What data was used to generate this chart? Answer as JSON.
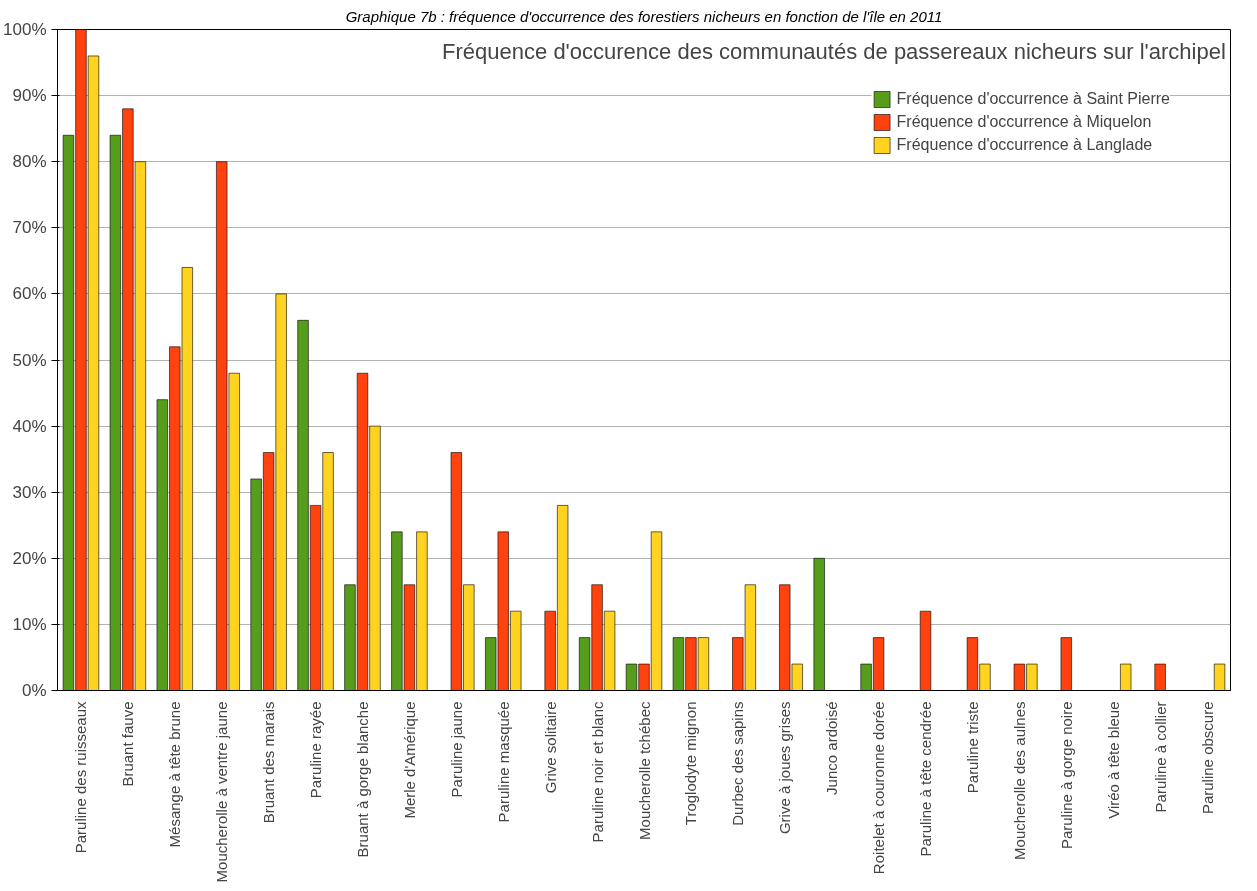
{
  "chart_data": {
    "type": "bar",
    "title": "Graphique 7b : fréquence d'occurrence des forestiers nicheurs en fonction de l'île en 2011",
    "subtitle": "Fréquence d'occurence des communautés de passereaux nicheurs sur l'archipel",
    "categories": [
      "Paruline des ruisseaux",
      "Bruant fauve",
      "Mésange à tête brune",
      "Moucherolle à ventre jaune",
      "Bruant des marais",
      "Paruline rayée",
      "Bruant à gorge blanche",
      "Merle d'Amérique",
      "Paruline jaune",
      "Paruline masquée",
      "Grive solitaire",
      "Paruline noir et blanc",
      "Moucherolle tchébec",
      "Troglodyte mignon",
      "Durbec des sapins",
      "Grive à joues grises",
      "Junco ardoisé",
      "Roitelet à couronne dorée",
      "Paruline à tête cendrée",
      "Paruline triste",
      "Moucherolle des aulnes",
      "Paruline à gorge noire",
      "Viréo à tête bleue",
      "Paruline à collier",
      "Paruline obscure"
    ],
    "series": [
      {
        "name": "Fréquence d'occurrence à Saint Pierre",
        "color": "#579d1c",
        "values": [
          84,
          84,
          44,
          0,
          32,
          56,
          16,
          24,
          0,
          8,
          0,
          8,
          4,
          8,
          0,
          0,
          20,
          4,
          0,
          0,
          0,
          0,
          0,
          0,
          0
        ]
      },
      {
        "name": "Fréquence d'occurrence à Miquelon",
        "color": "#ff420e",
        "values": [
          100,
          88,
          52,
          80,
          36,
          28,
          48,
          16,
          36,
          24,
          12,
          16,
          4,
          8,
          8,
          16,
          0,
          8,
          12,
          8,
          4,
          8,
          0,
          4,
          0
        ]
      },
      {
        "name": "Fréquence d'occurrence à Langlade",
        "color": "#ffd320",
        "values": [
          96,
          80,
          64,
          48,
          60,
          36,
          40,
          24,
          16,
          12,
          28,
          12,
          24,
          8,
          16,
          4,
          0,
          0,
          0,
          4,
          4,
          0,
          4,
          0,
          4
        ]
      }
    ],
    "ylim": [
      0,
      100
    ],
    "yticks": [
      {
        "value": 0,
        "label": "0%"
      },
      {
        "value": 10,
        "label": "10%"
      },
      {
        "value": 20,
        "label": "20%"
      },
      {
        "value": 30,
        "label": "30%"
      },
      {
        "value": 40,
        "label": "40%"
      },
      {
        "value": 50,
        "label": "50%"
      },
      {
        "value": 60,
        "label": "60%"
      },
      {
        "value": 70,
        "label": "70%"
      },
      {
        "value": 80,
        "label": "80%"
      },
      {
        "value": 90,
        "label": "90%"
      },
      {
        "value": 100,
        "label": "100%"
      }
    ],
    "grid": "y",
    "legend": "top right"
  }
}
